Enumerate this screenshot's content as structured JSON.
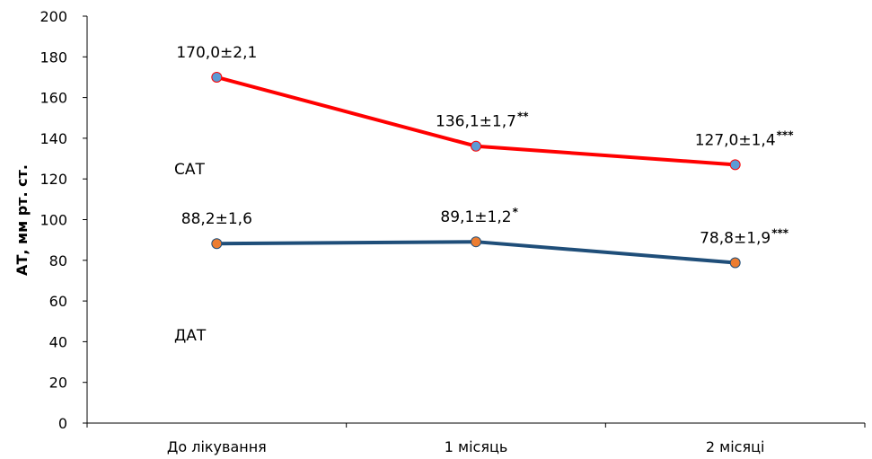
{
  "chart_data": {
    "type": "line",
    "ylabel": "АТ, мм рт. ст.",
    "xlabel": "",
    "ylim": [
      0,
      200
    ],
    "yticks": [
      0,
      20,
      40,
      60,
      80,
      100,
      120,
      140,
      160,
      180,
      200
    ],
    "categories": [
      "До лікування",
      "1 місяць",
      "2 місяці"
    ],
    "grid": false,
    "series": [
      {
        "name": "САТ",
        "line_color": "#ff0000",
        "marker_color": "#5b9bd5",
        "values": [
          170.0,
          136.1,
          127.0
        ],
        "labels": [
          "170,0±2,1",
          "136,1±1,7",
          "127,0±1,4"
        ],
        "significance": [
          "",
          "**",
          "***"
        ]
      },
      {
        "name": "ДАТ",
        "line_color": "#1f4e79",
        "marker_color": "#ed7d31",
        "values": [
          88.2,
          89.1,
          78.8
        ],
        "labels": [
          "88,2±1,6",
          "89,1±1,2",
          "78,8±1,9"
        ],
        "significance": [
          "",
          "*",
          "***"
        ]
      }
    ]
  }
}
